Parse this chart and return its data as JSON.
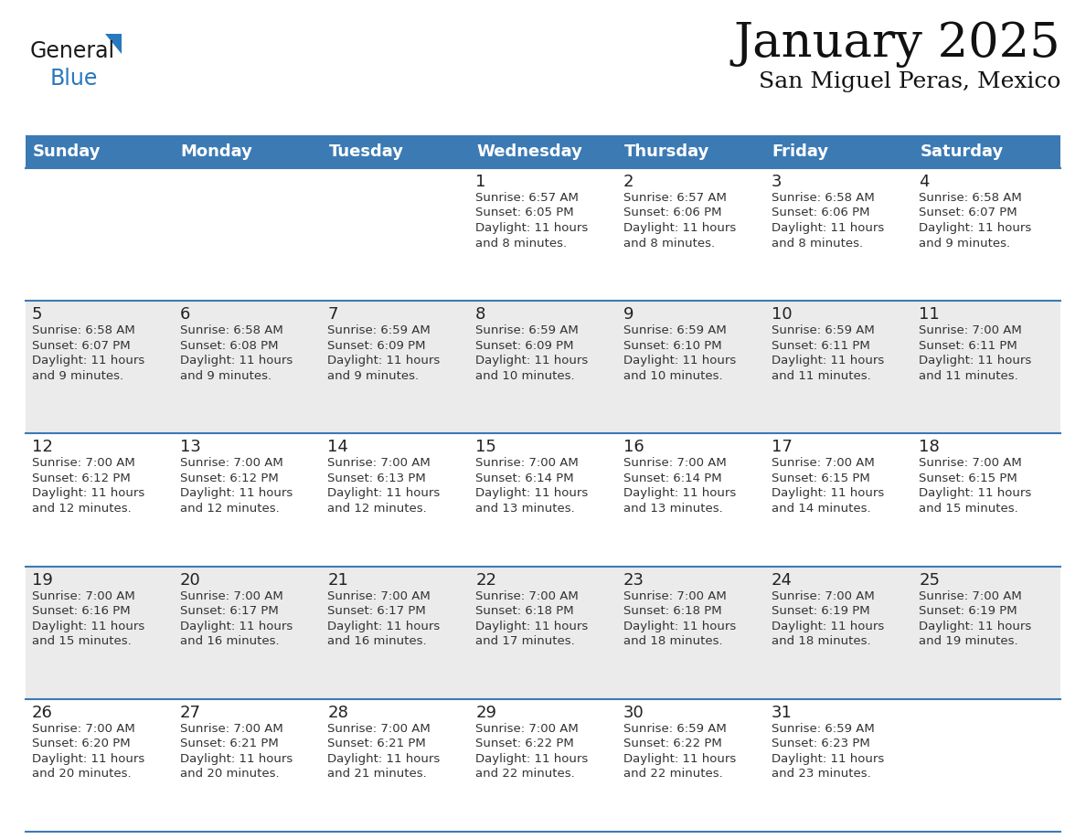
{
  "title": "January 2025",
  "subtitle": "San Miguel Peras, Mexico",
  "header_bg": "#3c7ab4",
  "header_text": "#ffffff",
  "row_bg_white": "#ffffff",
  "row_bg_gray": "#ebebeb",
  "row_separator": "#3c7ab4",
  "day_names": [
    "Sunday",
    "Monday",
    "Tuesday",
    "Wednesday",
    "Thursday",
    "Friday",
    "Saturday"
  ],
  "days": [
    {
      "day": 1,
      "col": 3,
      "row": 0,
      "sunrise": "6:57 AM",
      "sunset": "6:05 PM",
      "daylight": "11 hours and 8 minutes."
    },
    {
      "day": 2,
      "col": 4,
      "row": 0,
      "sunrise": "6:57 AM",
      "sunset": "6:06 PM",
      "daylight": "11 hours and 8 minutes."
    },
    {
      "day": 3,
      "col": 5,
      "row": 0,
      "sunrise": "6:58 AM",
      "sunset": "6:06 PM",
      "daylight": "11 hours and 8 minutes."
    },
    {
      "day": 4,
      "col": 6,
      "row": 0,
      "sunrise": "6:58 AM",
      "sunset": "6:07 PM",
      "daylight": "11 hours and 9 minutes."
    },
    {
      "day": 5,
      "col": 0,
      "row": 1,
      "sunrise": "6:58 AM",
      "sunset": "6:07 PM",
      "daylight": "11 hours and 9 minutes."
    },
    {
      "day": 6,
      "col": 1,
      "row": 1,
      "sunrise": "6:58 AM",
      "sunset": "6:08 PM",
      "daylight": "11 hours and 9 minutes."
    },
    {
      "day": 7,
      "col": 2,
      "row": 1,
      "sunrise": "6:59 AM",
      "sunset": "6:09 PM",
      "daylight": "11 hours and 9 minutes."
    },
    {
      "day": 8,
      "col": 3,
      "row": 1,
      "sunrise": "6:59 AM",
      "sunset": "6:09 PM",
      "daylight": "11 hours and 10 minutes."
    },
    {
      "day": 9,
      "col": 4,
      "row": 1,
      "sunrise": "6:59 AM",
      "sunset": "6:10 PM",
      "daylight": "11 hours and 10 minutes."
    },
    {
      "day": 10,
      "col": 5,
      "row": 1,
      "sunrise": "6:59 AM",
      "sunset": "6:11 PM",
      "daylight": "11 hours and 11 minutes."
    },
    {
      "day": 11,
      "col": 6,
      "row": 1,
      "sunrise": "7:00 AM",
      "sunset": "6:11 PM",
      "daylight": "11 hours and 11 minutes."
    },
    {
      "day": 12,
      "col": 0,
      "row": 2,
      "sunrise": "7:00 AM",
      "sunset": "6:12 PM",
      "daylight": "11 hours and 12 minutes."
    },
    {
      "day": 13,
      "col": 1,
      "row": 2,
      "sunrise": "7:00 AM",
      "sunset": "6:12 PM",
      "daylight": "11 hours and 12 minutes."
    },
    {
      "day": 14,
      "col": 2,
      "row": 2,
      "sunrise": "7:00 AM",
      "sunset": "6:13 PM",
      "daylight": "11 hours and 12 minutes."
    },
    {
      "day": 15,
      "col": 3,
      "row": 2,
      "sunrise": "7:00 AM",
      "sunset": "6:14 PM",
      "daylight": "11 hours and 13 minutes."
    },
    {
      "day": 16,
      "col": 4,
      "row": 2,
      "sunrise": "7:00 AM",
      "sunset": "6:14 PM",
      "daylight": "11 hours and 13 minutes."
    },
    {
      "day": 17,
      "col": 5,
      "row": 2,
      "sunrise": "7:00 AM",
      "sunset": "6:15 PM",
      "daylight": "11 hours and 14 minutes."
    },
    {
      "day": 18,
      "col": 6,
      "row": 2,
      "sunrise": "7:00 AM",
      "sunset": "6:15 PM",
      "daylight": "11 hours and 15 minutes."
    },
    {
      "day": 19,
      "col": 0,
      "row": 3,
      "sunrise": "7:00 AM",
      "sunset": "6:16 PM",
      "daylight": "11 hours and 15 minutes."
    },
    {
      "day": 20,
      "col": 1,
      "row": 3,
      "sunrise": "7:00 AM",
      "sunset": "6:17 PM",
      "daylight": "11 hours and 16 minutes."
    },
    {
      "day": 21,
      "col": 2,
      "row": 3,
      "sunrise": "7:00 AM",
      "sunset": "6:17 PM",
      "daylight": "11 hours and 16 minutes."
    },
    {
      "day": 22,
      "col": 3,
      "row": 3,
      "sunrise": "7:00 AM",
      "sunset": "6:18 PM",
      "daylight": "11 hours and 17 minutes."
    },
    {
      "day": 23,
      "col": 4,
      "row": 3,
      "sunrise": "7:00 AM",
      "sunset": "6:18 PM",
      "daylight": "11 hours and 18 minutes."
    },
    {
      "day": 24,
      "col": 5,
      "row": 3,
      "sunrise": "7:00 AM",
      "sunset": "6:19 PM",
      "daylight": "11 hours and 18 minutes."
    },
    {
      "day": 25,
      "col": 6,
      "row": 3,
      "sunrise": "7:00 AM",
      "sunset": "6:19 PM",
      "daylight": "11 hours and 19 minutes."
    },
    {
      "day": 26,
      "col": 0,
      "row": 4,
      "sunrise": "7:00 AM",
      "sunset": "6:20 PM",
      "daylight": "11 hours and 20 minutes."
    },
    {
      "day": 27,
      "col": 1,
      "row": 4,
      "sunrise": "7:00 AM",
      "sunset": "6:21 PM",
      "daylight": "11 hours and 20 minutes."
    },
    {
      "day": 28,
      "col": 2,
      "row": 4,
      "sunrise": "7:00 AM",
      "sunset": "6:21 PM",
      "daylight": "11 hours and 21 minutes."
    },
    {
      "day": 29,
      "col": 3,
      "row": 4,
      "sunrise": "7:00 AM",
      "sunset": "6:22 PM",
      "daylight": "11 hours and 22 minutes."
    },
    {
      "day": 30,
      "col": 4,
      "row": 4,
      "sunrise": "6:59 AM",
      "sunset": "6:22 PM",
      "daylight": "11 hours and 22 minutes."
    },
    {
      "day": 31,
      "col": 5,
      "row": 4,
      "sunrise": "6:59 AM",
      "sunset": "6:23 PM",
      "daylight": "11 hours and 23 minutes."
    }
  ],
  "num_rows": 5,
  "num_cols": 7,
  "row_colors": [
    "#ffffff",
    "#ebebeb",
    "#ffffff",
    "#ebebeb",
    "#ffffff"
  ],
  "logo_text_general": "General",
  "logo_text_blue": "Blue",
  "logo_color_general": "#1a1a1a",
  "logo_color_blue": "#2878be",
  "logo_triangle_color": "#2878be",
  "title_fontsize": 38,
  "subtitle_fontsize": 18,
  "header_fontsize": 13,
  "daynum_fontsize": 13,
  "cell_text_fontsize": 9.5
}
